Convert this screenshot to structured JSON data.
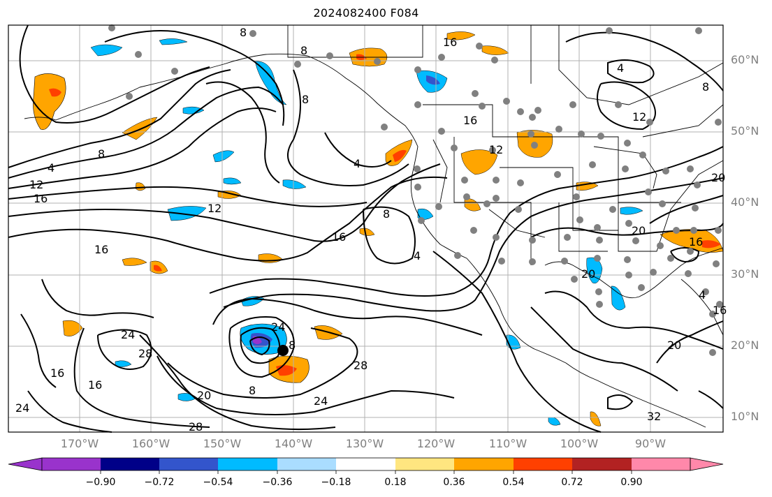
{
  "title": "2024082400 F084",
  "latitude_labels": [
    "60°N",
    "50°N",
    "40°N",
    "30°N",
    "20°N",
    "10°N"
  ],
  "longitude_labels": [
    "170°W",
    "160°W",
    "150°W",
    "140°W",
    "130°W",
    "120°W",
    "110°W",
    "100°W",
    "90°W"
  ],
  "contour_labels": [
    "8",
    "8",
    "8",
    "16",
    "4",
    "16",
    "12",
    "8",
    "4",
    "8",
    "12",
    "16",
    "4",
    "16",
    "12",
    "8",
    "16",
    "12",
    "4",
    "20",
    "16",
    "20",
    "20",
    "24",
    "8",
    "28",
    "8",
    "24",
    "24",
    "28",
    "16",
    "16",
    "20",
    "24",
    "28",
    "20",
    "32",
    "4",
    "16"
  ],
  "colorbar": {
    "tick_labels": [
      "−0.90",
      "−0.72",
      "−0.54",
      "−0.36",
      "−0.18",
      "0.18",
      "0.36",
      "0.54",
      "0.72",
      "0.90"
    ],
    "colors": [
      "#9933cc",
      "#000088",
      "#3355cc",
      "#00bbff",
      "#aaddff",
      "#ffffff",
      "#ffe680",
      "#ffa500",
      "#ff4000",
      "#b22222",
      "#ff88aa"
    ]
  },
  "colors": {
    "land_border": "#000000",
    "contour": "#000000",
    "station_dot": "#808080",
    "grid": "#b0b0b0",
    "axis_label": "#7f7f7f"
  },
  "icons": [
    "cyclone-center-marker",
    "station-dot"
  ]
}
